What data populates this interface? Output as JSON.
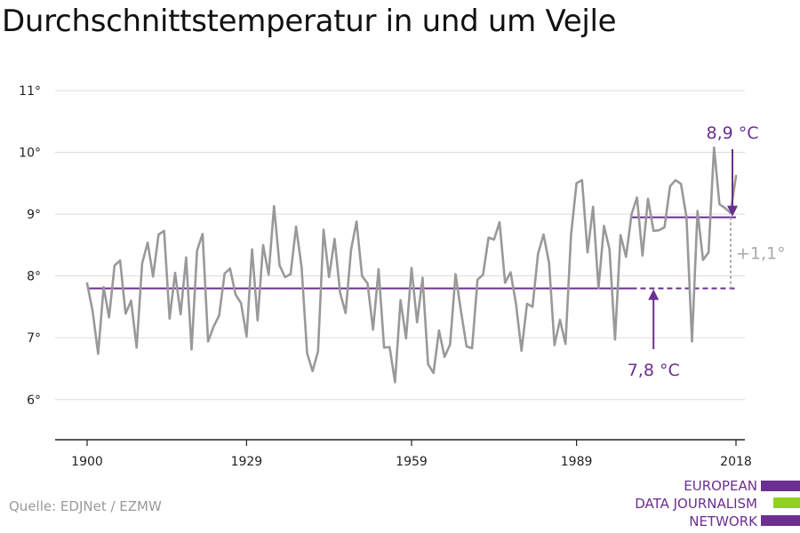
{
  "title": "Durchschnittstemperatur in und um Vejle",
  "source": "Quelle: EDJNet / EZMW",
  "logo": {
    "lines": [
      "EUROPEAN",
      "DATA JOURNALISM",
      "NETWORK"
    ],
    "colors": [
      "#6b2f8f",
      "#8fd11e",
      "#6b2f8f"
    ]
  },
  "colors": {
    "series": "#999999",
    "accent": "#6b2f8f",
    "grid": "#dddddd",
    "axis": "#222222",
    "delta": "#aaaaaa"
  },
  "chart_data": {
    "type": "line",
    "title": "Durchschnittstemperatur in und um Vejle",
    "x_ticks": [
      1900,
      1929,
      1959,
      1989,
      2018
    ],
    "y_ticks": [
      {
        "value": 6,
        "label": "6°"
      },
      {
        "value": 7,
        "label": "7°"
      },
      {
        "value": 8,
        "label": "8°"
      },
      {
        "value": 9,
        "label": "9°"
      },
      {
        "value": 10,
        "label": "10°"
      },
      {
        "value": 11,
        "label": "11°"
      }
    ],
    "xlim": [
      1900,
      2018
    ],
    "ylim": [
      5.35,
      11.1
    ],
    "grid": true,
    "series": [
      {
        "x_start": 1900,
        "values": [
          7.88,
          7.43,
          6.74,
          7.82,
          7.33,
          8.17,
          8.25,
          7.39,
          7.6,
          6.84,
          8.2,
          8.54,
          7.99,
          8.67,
          8.73,
          7.31,
          8.05,
          7.38,
          8.3,
          6.81,
          8.41,
          8.68,
          6.94,
          7.18,
          7.36,
          8.04,
          8.12,
          7.7,
          7.56,
          7.02,
          8.43,
          7.28,
          8.5,
          8.02,
          9.13,
          8.17,
          7.98,
          8.03,
          8.8,
          8.14,
          6.75,
          6.46,
          6.78,
          8.75,
          7.98,
          8.6,
          7.73,
          7.4,
          8.42,
          8.88,
          8.0,
          7.88,
          7.13,
          8.11,
          6.84,
          6.85,
          6.28,
          7.61,
          6.99,
          8.13,
          7.25,
          7.97,
          6.57,
          6.43,
          7.12,
          6.69,
          6.89,
          8.03,
          7.42,
          6.86,
          6.83,
          7.94,
          8.02,
          8.62,
          8.59,
          8.87,
          7.89,
          8.06,
          7.55,
          6.79,
          7.55,
          7.5,
          8.36,
          8.67,
          8.21,
          6.88,
          7.29,
          6.9,
          8.66,
          9.5,
          9.55,
          8.38,
          9.12,
          7.8,
          8.81,
          8.43,
          6.97,
          8.66,
          8.31,
          9.0,
          9.27,
          8.33,
          9.25,
          8.73,
          8.74,
          8.79,
          9.45,
          9.55,
          9.49,
          8.95,
          6.94,
          9.05,
          8.26,
          8.38,
          10.08,
          9.16,
          9.1,
          9.02,
          9.62
        ]
      }
    ],
    "reference_lines": [
      {
        "value": 7.8,
        "label": "7,8 °C",
        "x_start": 1900,
        "x_end": 2018,
        "dashed_from": 1999
      },
      {
        "value": 8.95,
        "label": "8,9 °C",
        "x_start": 1999,
        "x_end": 2018
      }
    ],
    "delta_label": "+1,1°"
  }
}
